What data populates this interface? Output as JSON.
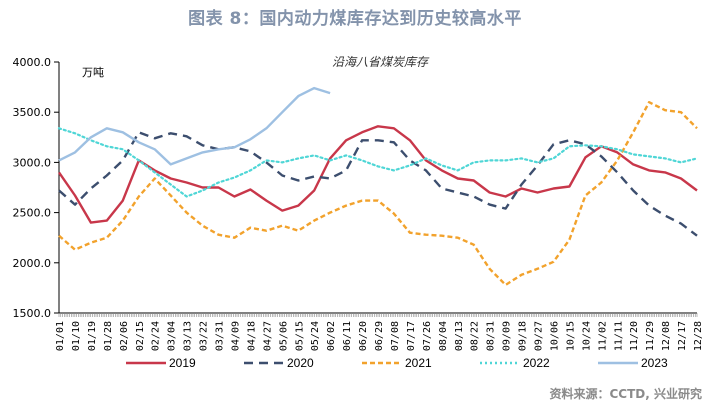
{
  "header": {
    "title": "图表 8：国内动力煤库存达到历史较高水平"
  },
  "footer": {
    "source": "资料来源：CCTD, 兴业研究"
  },
  "chart_data": {
    "type": "line",
    "title": "沿海八省煤炭库存",
    "unit_label": "万吨",
    "xlabel": "",
    "ylabel": "万吨",
    "ylim": [
      1500,
      4000
    ],
    "yticks": [
      1500,
      2000,
      2500,
      3000,
      3500,
      4000
    ],
    "ytick_labels": [
      "1500.0",
      "2000.0",
      "2500.0",
      "3000.0",
      "3500.0",
      "4000.0"
    ],
    "grid": false,
    "legend_position": "bottom",
    "categories": [
      "01/01",
      "01/10",
      "01/19",
      "01/28",
      "02/06",
      "02/15",
      "02/24",
      "03/04",
      "03/13",
      "03/22",
      "03/31",
      "04/09",
      "04/18",
      "04/27",
      "05/06",
      "05/15",
      "05/24",
      "06/02",
      "06/11",
      "06/20",
      "06/29",
      "07/08",
      "07/17",
      "07/26",
      "08/04",
      "08/13",
      "08/22",
      "08/31",
      "09/09",
      "09/18",
      "09/27",
      "10/06",
      "10/15",
      "10/24",
      "11/02",
      "11/11",
      "11/20",
      "11/29",
      "12/08",
      "12/17",
      "12/28"
    ],
    "series": [
      {
        "name": "2019",
        "color": "#c8374a",
        "style": "solid",
        "values": [
          2900,
          2670,
          2400,
          2420,
          2620,
          3020,
          2920,
          2840,
          2800,
          2750,
          2750,
          2660,
          2730,
          2620,
          2520,
          2570,
          2720,
          3040,
          3220,
          3300,
          3360,
          3340,
          3220,
          3020,
          2920,
          2840,
          2820,
          2700,
          2660,
          2740,
          2700,
          2740,
          2760,
          3050,
          3160,
          3100,
          2980,
          2920,
          2900,
          2840,
          2720
        ]
      },
      {
        "name": "2020",
        "color": "#3c4e6e",
        "style": "dash",
        "values": [
          2720,
          2580,
          2740,
          2870,
          3020,
          3300,
          3240,
          3290,
          3260,
          3170,
          3130,
          3150,
          3110,
          3000,
          2870,
          2820,
          2860,
          2840,
          2920,
          3220,
          3220,
          3200,
          3020,
          2920,
          2740,
          2700,
          2660,
          2580,
          2540,
          2780,
          2970,
          3180,
          3220,
          3180,
          3060,
          2900,
          2720,
          2570,
          2470,
          2390,
          2270
        ]
      },
      {
        "name": "2021",
        "color": "#f2a22c",
        "style": "shortdash",
        "values": [
          2270,
          2130,
          2200,
          2250,
          2420,
          2660,
          2840,
          2670,
          2500,
          2370,
          2280,
          2250,
          2350,
          2320,
          2370,
          2320,
          2420,
          2500,
          2570,
          2620,
          2620,
          2490,
          2300,
          2280,
          2270,
          2250,
          2180,
          1940,
          1780,
          1880,
          1940,
          2010,
          2230,
          2670,
          2800,
          3020,
          3300,
          3600,
          3520,
          3500,
          3340
        ]
      },
      {
        "name": "2022",
        "color": "#4fd6d6",
        "style": "dot",
        "values": [
          3340,
          3290,
          3220,
          3160,
          3130,
          3020,
          2900,
          2780,
          2660,
          2720,
          2800,
          2850,
          2920,
          3020,
          3000,
          3040,
          3070,
          3020,
          3070,
          3020,
          2960,
          2920,
          2970,
          3040,
          2970,
          2920,
          3000,
          3020,
          3020,
          3040,
          3000,
          3040,
          3160,
          3170,
          3160,
          3130,
          3080,
          3060,
          3040,
          3000,
          3040
        ]
      },
      {
        "name": "2023",
        "color": "#9ec0e2",
        "style": "solid",
        "values": [
          3020,
          3100,
          3250,
          3340,
          3300,
          3200,
          3130,
          2980,
          3040,
          3100,
          3130,
          3150,
          3230,
          3340,
          3500,
          3660,
          3740,
          3690,
          null,
          null,
          null,
          null,
          null,
          null,
          null,
          null,
          null,
          null,
          null,
          null,
          null,
          null,
          null,
          null,
          null,
          null,
          null,
          null,
          null,
          null,
          null
        ]
      }
    ]
  }
}
